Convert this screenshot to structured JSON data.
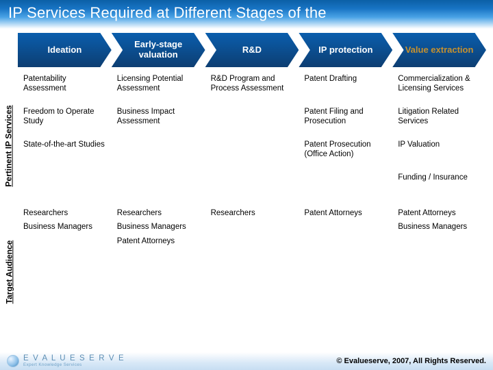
{
  "title": "IP Services Required at Different Stages of the",
  "colors": {
    "title_grad_top": "#0b5fa6",
    "arrow_grad_top": "#0a5ead",
    "arrow_grad_bottom": "#0d3e72",
    "accent_text": "#c7912e",
    "footer_text": "#04487e"
  },
  "stages": [
    {
      "label": "Ideation",
      "accent": false
    },
    {
      "label": "Early-stage valuation",
      "accent": false
    },
    {
      "label": "R&D",
      "accent": false
    },
    {
      "label": "IP protection",
      "accent": false
    },
    {
      "label": "Value extraction",
      "accent": true
    }
  ],
  "sections": [
    {
      "label": "Pertinent IP Services",
      "rows": [
        [
          "Patentability Assessment",
          "Licensing Potential Assessment",
          "R&D Program and Process Assessment",
          "Patent Drafting",
          "Commercialization & Licensing Services"
        ],
        [
          "Freedom to Operate Study",
          "Business Impact Assessment",
          "",
          "Patent Filing and Prosecution",
          "Litigation Related Services"
        ],
        [
          "State-of-the-art Studies",
          "",
          "",
          "Patent Prosecution (Office Action)",
          "IP Valuation"
        ],
        [
          "",
          "",
          "",
          "",
          "Funding / Insurance"
        ]
      ]
    },
    {
      "label": "Target Audience",
      "rows": [
        [
          "Researchers\nBusiness Managers",
          "Researchers\nBusiness Managers\nPatent Attorneys",
          "Researchers",
          "Patent Attorneys",
          "Patent Attorneys\nBusiness Managers"
        ]
      ]
    }
  ],
  "footer": {
    "brand": "E V A L U E S E R V E",
    "tagline": "Expert Knowledge Services",
    "copyright": "© Evalueserve, 2007, All Rights Reserved."
  }
}
